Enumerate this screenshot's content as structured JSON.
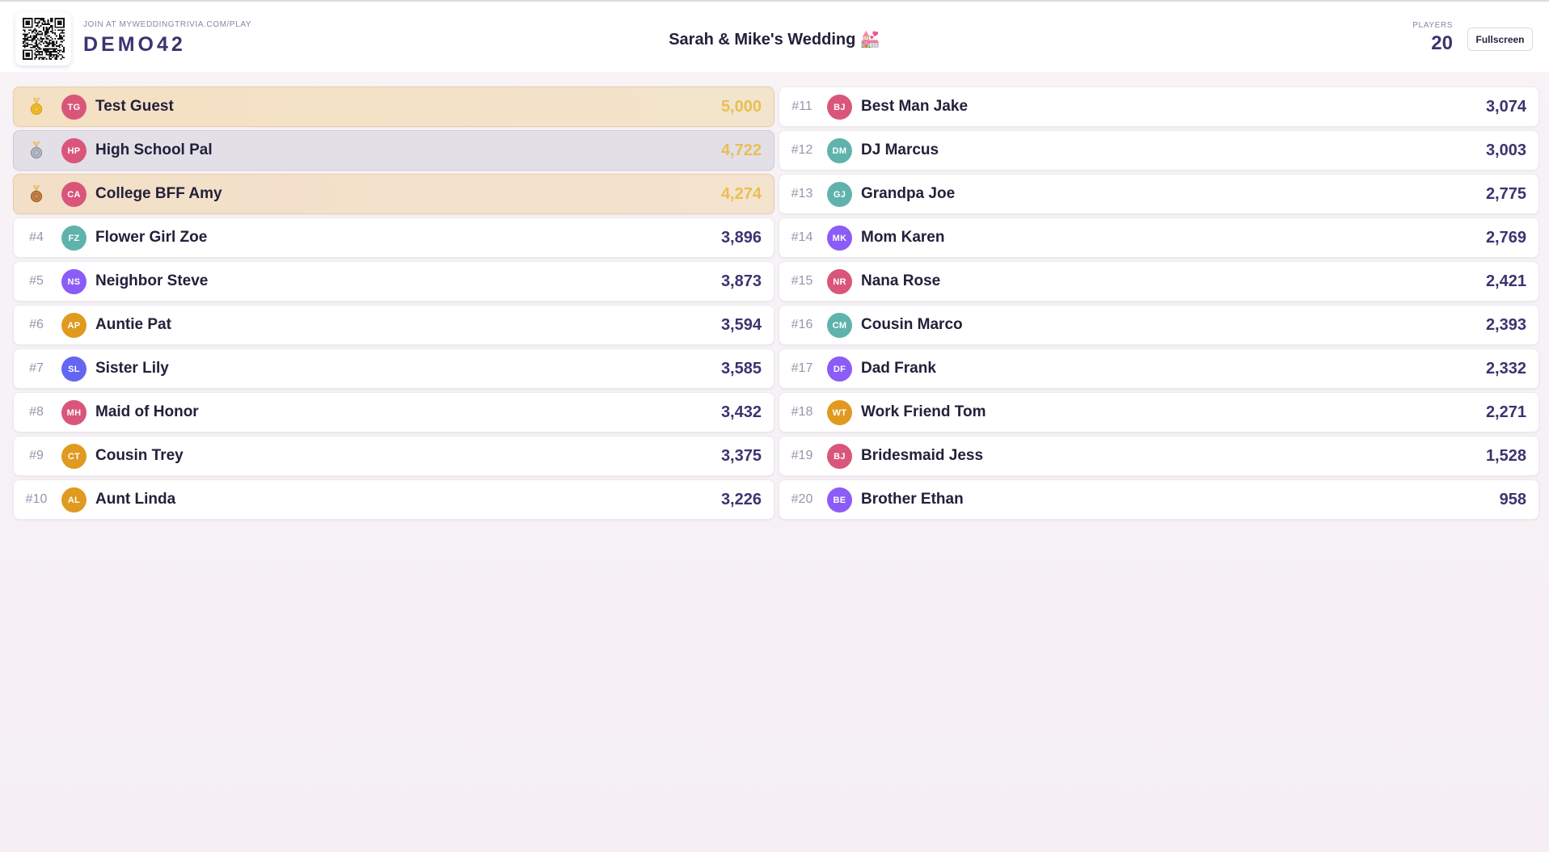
{
  "header": {
    "join_label": "JOIN AT MYWEDDINGTRIVIA.COM/PLAY",
    "room_code": "DEMO42",
    "event_title": "Sarah & Mike's Wedding 💒",
    "players_label": "PLAYERS",
    "players_count": "20",
    "fullscreen_label": "Fullscreen",
    "qr_icon": "qr-code-icon"
  },
  "colors": {
    "pink": "#d9567a",
    "teal": "#5fb3ac",
    "purple": "#8b5cf6",
    "orange": "#e09a1f",
    "indigo": "#6366f1",
    "gold_score": "#e9bf52",
    "score": "#3d3370"
  },
  "leaderboard": [
    {
      "rank": "",
      "medal": "gold-medal-icon",
      "initials": "TG",
      "name": "Test Guest",
      "score": "5,000",
      "color": "#d9567a"
    },
    {
      "rank": "",
      "medal": "silver-medal-icon",
      "initials": "HP",
      "name": "High School Pal",
      "score": "4,722",
      "color": "#d9567a"
    },
    {
      "rank": "",
      "medal": "bronze-medal-icon",
      "initials": "CA",
      "name": "College BFF Amy",
      "score": "4,274",
      "color": "#d9567a"
    },
    {
      "rank": "#4",
      "initials": "FZ",
      "name": "Flower Girl Zoe",
      "score": "3,896",
      "color": "#5fb3ac"
    },
    {
      "rank": "#5",
      "initials": "NS",
      "name": "Neighbor Steve",
      "score": "3,873",
      "color": "#8b5cf6"
    },
    {
      "rank": "#6",
      "initials": "AP",
      "name": "Auntie Pat",
      "score": "3,594",
      "color": "#e09a1f"
    },
    {
      "rank": "#7",
      "initials": "SL",
      "name": "Sister Lily",
      "score": "3,585",
      "color": "#6366f1"
    },
    {
      "rank": "#8",
      "initials": "MH",
      "name": "Maid of Honor",
      "score": "3,432",
      "color": "#d9567a"
    },
    {
      "rank": "#9",
      "initials": "CT",
      "name": "Cousin Trey",
      "score": "3,375",
      "color": "#e09a1f"
    },
    {
      "rank": "#10",
      "initials": "AL",
      "name": "Aunt Linda",
      "score": "3,226",
      "color": "#e09a1f"
    },
    {
      "rank": "#11",
      "initials": "BJ",
      "name": "Best Man Jake",
      "score": "3,074",
      "color": "#d9567a"
    },
    {
      "rank": "#12",
      "initials": "DM",
      "name": "DJ Marcus",
      "score": "3,003",
      "color": "#5fb3ac"
    },
    {
      "rank": "#13",
      "initials": "GJ",
      "name": "Grandpa Joe",
      "score": "2,775",
      "color": "#5fb3ac"
    },
    {
      "rank": "#14",
      "initials": "MK",
      "name": "Mom Karen",
      "score": "2,769",
      "color": "#8b5cf6"
    },
    {
      "rank": "#15",
      "initials": "NR",
      "name": "Nana Rose",
      "score": "2,421",
      "color": "#d9567a"
    },
    {
      "rank": "#16",
      "initials": "CM",
      "name": "Cousin Marco",
      "score": "2,393",
      "color": "#5fb3ac"
    },
    {
      "rank": "#17",
      "initials": "DF",
      "name": "Dad Frank",
      "score": "2,332",
      "color": "#8b5cf6"
    },
    {
      "rank": "#18",
      "initials": "WT",
      "name": "Work Friend Tom",
      "score": "2,271",
      "color": "#e09a1f"
    },
    {
      "rank": "#19",
      "initials": "BJ",
      "name": "Bridesmaid Jess",
      "score": "1,528",
      "color": "#d9567a"
    },
    {
      "rank": "#20",
      "initials": "BE",
      "name": "Brother Ethan",
      "score": "958",
      "color": "#8b5cf6"
    }
  ]
}
